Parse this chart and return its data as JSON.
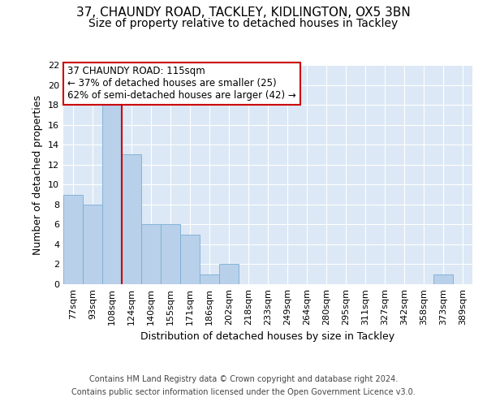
{
  "title_line1": "37, CHAUNDY ROAD, TACKLEY, KIDLINGTON, OX5 3BN",
  "title_line2": "Size of property relative to detached houses in Tackley",
  "xlabel": "Distribution of detached houses by size in Tackley",
  "ylabel": "Number of detached properties",
  "categories": [
    "77sqm",
    "93sqm",
    "108sqm",
    "124sqm",
    "140sqm",
    "155sqm",
    "171sqm",
    "186sqm",
    "202sqm",
    "218sqm",
    "233sqm",
    "249sqm",
    "264sqm",
    "280sqm",
    "295sqm",
    "311sqm",
    "327sqm",
    "342sqm",
    "358sqm",
    "373sqm",
    "389sqm"
  ],
  "values": [
    9,
    8,
    18,
    13,
    6,
    6,
    5,
    1,
    2,
    0,
    0,
    0,
    0,
    0,
    0,
    0,
    0,
    0,
    0,
    1,
    0
  ],
  "ylim": [
    0,
    22
  ],
  "yticks": [
    0,
    2,
    4,
    6,
    8,
    10,
    12,
    14,
    16,
    18,
    20,
    22
  ],
  "bar_color": "#b8d0ea",
  "bar_edge_color": "#7aadd4",
  "red_line_x": 2.5,
  "annotation_line1": "37 CHAUNDY ROAD: 115sqm",
  "annotation_line2": "← 37% of detached houses are smaller (25)",
  "annotation_line3": "62% of semi-detached houses are larger (42) →",
  "annotation_box_color": "#ffffff",
  "annotation_box_edge": "#cc0000",
  "footer_line1": "Contains HM Land Registry data © Crown copyright and database right 2024.",
  "footer_line2": "Contains public sector information licensed under the Open Government Licence v3.0.",
  "bg_color": "#dce8f5",
  "grid_color": "#ffffff",
  "title_fontsize": 11,
  "subtitle_fontsize": 10,
  "axis_label_fontsize": 9,
  "tick_fontsize": 8,
  "footer_fontsize": 7
}
